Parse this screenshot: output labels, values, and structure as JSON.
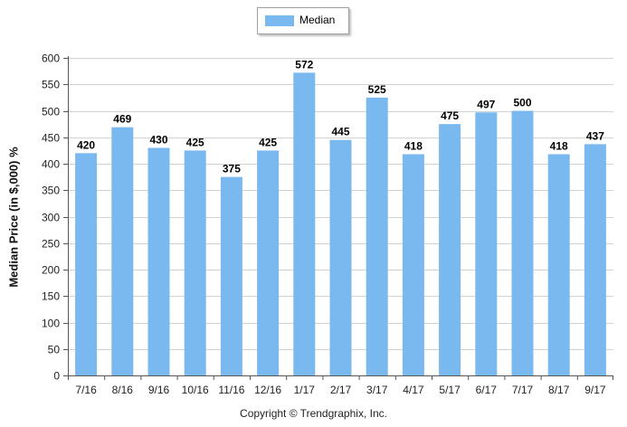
{
  "chart_data": {
    "type": "bar",
    "categories": [
      "7/16",
      "8/16",
      "9/16",
      "10/16",
      "11/16",
      "12/16",
      "1/17",
      "2/17",
      "3/17",
      "4/17",
      "5/17",
      "6/17",
      "7/17",
      "8/17",
      "9/17"
    ],
    "series": [
      {
        "name": "Median",
        "values": [
          420,
          469,
          430,
          425,
          375,
          425,
          572,
          445,
          525,
          418,
          475,
          497,
          500,
          418,
          437
        ]
      }
    ],
    "ylabel": "Median Price (in $,000) %",
    "xlabel": "",
    "ylim": [
      0,
      600
    ],
    "yticks": [
      0,
      50,
      100,
      150,
      200,
      250,
      300,
      350,
      400,
      450,
      500,
      550,
      600
    ],
    "grid": true,
    "legend_position": "top-center",
    "bar_color": "#7ab9ef"
  },
  "legend": {
    "label": "Median"
  },
  "footer": {
    "copyright": "Copyright © Trendgraphix, Inc."
  }
}
